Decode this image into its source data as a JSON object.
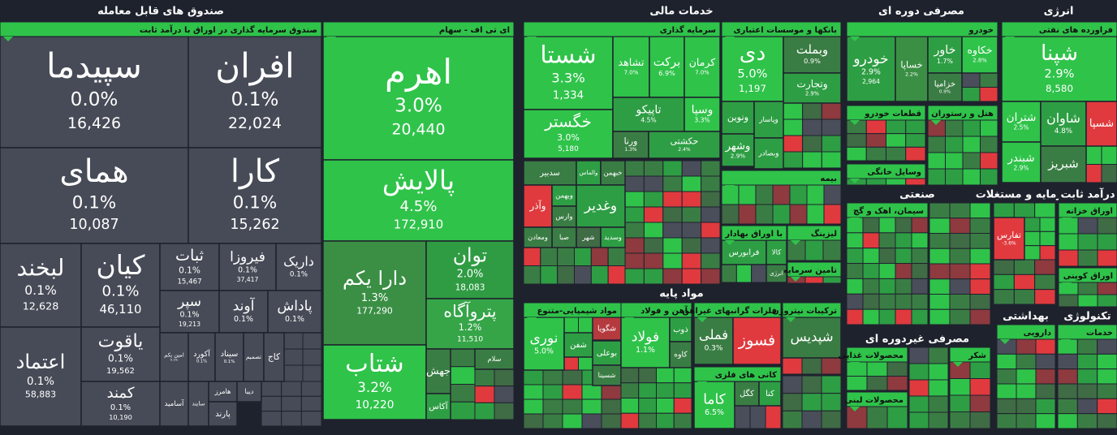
{
  "sectors": [
    {
      "title": "صندوق های قابل معامله",
      "groups": [
        {
          "title": "صندوق سرمایه گذاری در اوراق با درآمد ثابت",
          "tiles": [
            {
              "name": "سپیدما",
              "change": "0.0%",
              "volume": "16,426",
              "color": "#474b57"
            },
            {
              "name": "افران",
              "change": "0.1%",
              "volume": "22,024",
              "color": "#474b57"
            },
            {
              "name": "همای",
              "change": "0.1%",
              "volume": "10,087",
              "color": "#474b57"
            },
            {
              "name": "کارا",
              "change": "0.1%",
              "volume": "15,262",
              "color": "#474b57"
            },
            {
              "name": "لبخند",
              "change": "0.1%",
              "volume": "12,628",
              "color": "#474b57"
            },
            {
              "name": "کیان",
              "change": "0.1%",
              "volume": "46,110",
              "color": "#474b57"
            },
            {
              "name": "ثبات",
              "change": "0.1%",
              "volume": "15,467",
              "color": "#474b57"
            },
            {
              "name": "فیروزا",
              "change": "0.1%",
              "volume": "37,417",
              "color": "#474b57"
            },
            {
              "name": "داریک",
              "change": "0.1%",
              "color": "#474b57"
            },
            {
              "name": "سپر",
              "change": "0.1%",
              "volume": "19,213",
              "color": "#474b57"
            },
            {
              "name": "آوند",
              "change": "0.1%",
              "color": "#474b57"
            },
            {
              "name": "پاداش",
              "change": "0.1%",
              "color": "#474b57"
            },
            {
              "name": "اعتماد",
              "change": "0.1%",
              "volume": "58,883",
              "color": "#474b57"
            },
            {
              "name": "یاقوت",
              "change": "0.1%",
              "volume": "19,562",
              "color": "#474b57"
            },
            {
              "name": "کمند",
              "change": "0.1%",
              "volume": "10,190",
              "color": "#474b57"
            },
            {
              "name": "امین یکم",
              "change": "0.1%",
              "color": "#474b57"
            },
            {
              "name": "آکورد",
              "change": "0.1%",
              "color": "#474b57"
            },
            {
              "name": "سیناد",
              "change": "0.1%",
              "color": "#474b57"
            },
            {
              "name": "تصمیم",
              "color": "#474b57"
            },
            {
              "name": "کاج",
              "color": "#474b57"
            },
            {
              "name": "آسامید",
              "color": "#474b57"
            },
            {
              "name": "سایند",
              "color": "#474b57"
            },
            {
              "name": "هامرز",
              "color": "#474b57"
            },
            {
              "name": "پارند",
              "color": "#474b57"
            },
            {
              "name": "دیبا",
              "color": "#474b57"
            }
          ]
        },
        {
          "title": "ای تی اف - سهام",
          "tiles": [
            {
              "name": "اهرم",
              "change": "3.0%",
              "volume": "20,440",
              "color": "#2fc34a"
            },
            {
              "name": "پالایش",
              "change": "4.5%",
              "volume": "172,910",
              "color": "#2fc34a"
            },
            {
              "name": "دارا یکم",
              "change": "1.3%",
              "volume": "177,290",
              "color": "#3a8f44"
            },
            {
              "name": "توان",
              "change": "2.0%",
              "volume": "18,083",
              "color": "#2f9c43"
            },
            {
              "name": "پتروآگاه",
              "change": "1.2%",
              "volume": "11,510",
              "color": "#35a548"
            },
            {
              "name": "شتاب",
              "change": "3.2%",
              "volume": "10,220",
              "color": "#2fc34a"
            },
            {
              "name": "جهش",
              "color": "#3a7d44"
            },
            {
              "name": "سلام",
              "color": "#3a7d44"
            },
            {
              "name": "آکاس",
              "color": "#2e9e44"
            }
          ]
        }
      ]
    },
    {
      "title": "خدمات مالی",
      "groups": [
        {
          "title": "سرمایه گذاری",
          "tiles": [
            {
              "name": "شستا",
              "change": "3.3%",
              "volume": "1,334",
              "color": "#2fc34a"
            },
            {
              "name": "تشاهد",
              "change": "7.0%",
              "color": "#2fc34a"
            },
            {
              "name": "برکت",
              "change": "6.9%",
              "color": "#2fc34a"
            },
            {
              "name": "کرمان",
              "change": "7.0%",
              "color": "#2fc34a"
            },
            {
              "name": "خگستر",
              "change": "3.0%",
              "volume": "5,180",
              "color": "#2fc34a"
            },
            {
              "name": "تاپیکو",
              "change": "4.5%",
              "color": "#2e9e44"
            },
            {
              "name": "وسپا",
              "change": "3.3%",
              "color": "#2fc34a"
            },
            {
              "name": "ورنا",
              "change": "1.3%",
              "color": "#3a7d44"
            },
            {
              "name": "حکشتی",
              "change": "2.4%",
              "color": "#2e9e44"
            },
            {
              "name": "سدبیر",
              "color": "#3a7d44"
            },
            {
              "name": "والماس",
              "color": "#2e9e44"
            },
            {
              "name": "خبهمن",
              "color": "#3a7d44"
            },
            {
              "name": "وآذر",
              "color": "#e03a3e"
            },
            {
              "name": "وبهمن",
              "color": "#2e9e44"
            },
            {
              "name": "وارس",
              "color": "#3a7d44"
            },
            {
              "name": "وغدیر",
              "color": "#2e9e44"
            },
            {
              "name": "صبا",
              "color": "#3a7d44"
            },
            {
              "name": "شهر",
              "color": "#3f6b45"
            },
            {
              "name": "وسدید",
              "color": "#2e9e44"
            },
            {
              "name": "ومعادن",
              "color": "#3a7d44"
            }
          ]
        },
        {
          "title": "بانکها و موسسات اعتباری",
          "tiles": [
            {
              "name": "دی",
              "change": "5.0%",
              "volume": "1,197",
              "color": "#2fc34a"
            },
            {
              "name": "وبملت",
              "change": "0.9%",
              "color": "#3a7d44"
            },
            {
              "name": "وتجارت",
              "change": "2.9%",
              "color": "#2e9e44"
            },
            {
              "name": "ونوین",
              "color": "#2e9e44"
            },
            {
              "name": "وپاسار",
              "color": "#2e9e44"
            },
            {
              "name": "وشهر",
              "change": "2.9%",
              "color": "#2e9e44"
            },
            {
              "name": "وبصادر",
              "color": "#2e9e44"
            }
          ]
        },
        {
          "title": "بیمه",
          "tiles": []
        },
        {
          "title": "با اوراق بهادار",
          "tiles": [
            {
              "name": "فرابورس",
              "color": "#2e9e44"
            },
            {
              "name": "کالا",
              "color": "#2e9e44"
            },
            {
              "name": "انرژی",
              "color": "#3a7d44"
            }
          ]
        },
        {
          "title": "لیزینگ",
          "tiles": []
        },
        {
          "title": "تامین سرمایه",
          "tiles": []
        }
      ]
    },
    {
      "title": "مواد پایه",
      "groups": [
        {
          "title": "مواد شیمیایی-متنوع",
          "tiles": [
            {
              "name": "نوری",
              "change": "5.0%",
              "color": "#2fc34a"
            },
            {
              "name": "شگویا",
              "color": "#b53a3e"
            },
            {
              "name": "شفن",
              "color": "#2e9e44"
            },
            {
              "name": "بوعلی",
              "color": "#2e9e44"
            },
            {
              "name": "شسینا",
              "color": "#3a7d44"
            }
          ]
        },
        {
          "title": "آهن و فولاد",
          "tiles": [
            {
              "name": "فولاد",
              "change": "1.1%",
              "color": "#2fc34a"
            },
            {
              "name": "ذوب",
              "color": "#2e9e44"
            },
            {
              "name": "کاوه",
              "color": "#3a7d44"
            }
          ]
        },
        {
          "title": "فلزات گرانبهای غیراهن",
          "tiles": [
            {
              "name": "فملی",
              "change": "0.3%",
              "color": "#3a7d44"
            },
            {
              "name": "فسوز",
              "color": "#e03a3e"
            }
          ]
        },
        {
          "title": "ترکیبات نیتروژن",
          "tiles": [
            {
              "name": "شپدیس",
              "color": "#3a7d44"
            }
          ]
        },
        {
          "title": "کانی های فلزی",
          "tiles": [
            {
              "name": "کاما",
              "change": "6.5%",
              "color": "#2fc34a"
            },
            {
              "name": "کگل",
              "color": "#3a7d44"
            },
            {
              "name": "کنا",
              "color": "#2e9e44"
            }
          ]
        }
      ]
    },
    {
      "title": "مصرفی دوره ای",
      "groups": [
        {
          "title": "خودرو",
          "tiles": [
            {
              "name": "خودرو",
              "change": "2.9%",
              "volume": "2,964",
              "color": "#2e9e44"
            },
            {
              "name": "خساپا",
              "change": "2.2%",
              "color": "#3a8f44"
            },
            {
              "name": "خاور",
              "change": "1.7%",
              "color": "#2e9e44"
            },
            {
              "name": "خکاوه",
              "change": "2.8%",
              "color": "#2fc34a"
            },
            {
              "name": "خزامیا",
              "change": "0.9%",
              "color": "#3a7d44"
            }
          ]
        },
        {
          "title": "قطعات خودرو",
          "tiles": []
        },
        {
          "title": "هتل و رستوران",
          "tiles": []
        },
        {
          "title": "وسایل خانگی",
          "tiles": []
        }
      ]
    },
    {
      "title": "انرژی",
      "groups": [
        {
          "title": "فراورده های نفتی",
          "tiles": [
            {
              "name": "شپنا",
              "change": "2.9%",
              "volume": "8,580",
              "color": "#2fc34a"
            },
            {
              "name": "شتران",
              "change": "2.5%",
              "color": "#2fc34a"
            },
            {
              "name": "شاوان",
              "change": "4.8%",
              "color": "#2e9e44"
            },
            {
              "name": "شسپا",
              "color": "#e03a3e"
            },
            {
              "name": "شبندر",
              "change": "2.9%",
              "color": "#2fc34a"
            },
            {
              "name": "شبریز",
              "color": "#3a7d44"
            }
          ]
        }
      ]
    },
    {
      "title": "صنعتی",
      "groups": [
        {
          "title": "سیمان، اهک و گچ",
          "tiles": []
        }
      ]
    },
    {
      "title": "سرمایه و مستغلات",
      "groups": [
        {
          "tiles": [
            {
              "name": "تفارس",
              "change": "-3.6%",
              "color": "#e03a3e"
            }
          ]
        }
      ]
    },
    {
      "title": "درآمد ثابت",
      "groups": [
        {
          "title": "اوراق خزانه",
          "tiles": []
        },
        {
          "title": "اوراق کوپنی",
          "tiles": []
        }
      ]
    },
    {
      "title": "مصرفی غیردوره ای",
      "groups": [
        {
          "title": "محصولات غذایی",
          "tiles": []
        },
        {
          "title": "شکر",
          "tiles": []
        },
        {
          "title": "محصولات لبنی",
          "tiles": []
        }
      ]
    },
    {
      "title": "بهداشتی",
      "groups": [
        {
          "title": "دارویی",
          "tiles": []
        }
      ]
    },
    {
      "title": "تکنولوژی",
      "groups": [
        {
          "title": "خدمات",
          "tiles": []
        }
      ]
    }
  ]
}
